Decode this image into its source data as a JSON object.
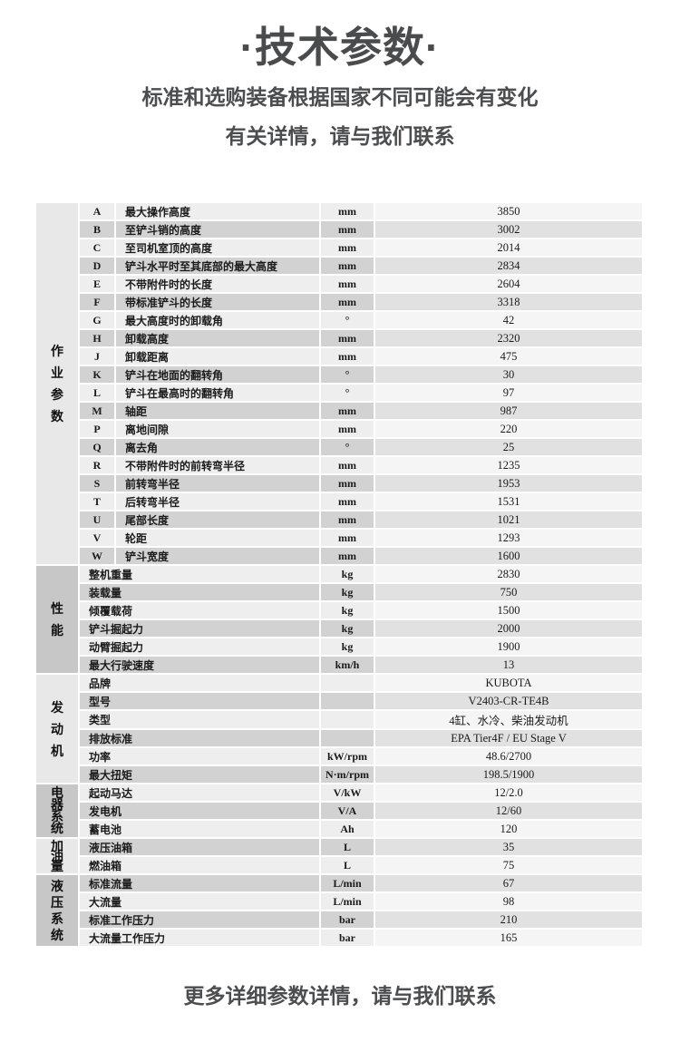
{
  "header": {
    "title": "·技术参数·",
    "subtitle_line1": "标准和选购装备根据国家不同可能会有变化",
    "subtitle_line2": "有关详情，请与我们联系"
  },
  "footer": {
    "text": "更多详细参数详情，请与我们联系"
  },
  "colors": {
    "heading_text": "#4a4b4d",
    "row_light": "#eeeeee",
    "row_dark": "#d2d2d2",
    "value_light": "#f5f5f5",
    "value_dark": "#e1e1e1",
    "group_light": "#e8e8e8",
    "group_dark": "#c7c7c7"
  },
  "table": {
    "sections": [
      {
        "group": "作业参数",
        "rows": [
          {
            "key": "A",
            "label": "最大操作高度",
            "unit": "mm",
            "value": "3850"
          },
          {
            "key": "B",
            "label": "至铲斗销的高度",
            "unit": "mm",
            "value": "3002"
          },
          {
            "key": "C",
            "label": "至司机室顶的高度",
            "unit": "mm",
            "value": "2014"
          },
          {
            "key": "D",
            "label": "铲斗水平时至其底部的最大高度",
            "unit": "mm",
            "value": "2834"
          },
          {
            "key": "E",
            "label": "不带附件时的长度",
            "unit": "mm",
            "value": "2604"
          },
          {
            "key": "F",
            "label": "带标准铲斗的长度",
            "unit": "mm",
            "value": "3318"
          },
          {
            "key": "G",
            "label": "最大高度时的卸载角",
            "unit": "°",
            "value": "42"
          },
          {
            "key": "H",
            "label": "卸载高度",
            "unit": "mm",
            "value": "2320"
          },
          {
            "key": "J",
            "label": "卸载距离",
            "unit": "mm",
            "value": "475"
          },
          {
            "key": "K",
            "label": "铲斗在地面的翻转角",
            "unit": "°",
            "value": "30"
          },
          {
            "key": "L",
            "label": "铲斗在最高时的翻转角",
            "unit": "°",
            "value": "97"
          },
          {
            "key": "M",
            "label": "轴距",
            "unit": "mm",
            "value": "987"
          },
          {
            "key": "P",
            "label": "离地间隙",
            "unit": "mm",
            "value": "220"
          },
          {
            "key": "Q",
            "label": "离去角",
            "unit": "°",
            "value": "25"
          },
          {
            "key": "R",
            "label": "不带附件时的前转弯半径",
            "unit": "mm",
            "value": "1235"
          },
          {
            "key": "S",
            "label": "前转弯半径",
            "unit": "mm",
            "value": "1953"
          },
          {
            "key": "T",
            "label": "后转弯半径",
            "unit": "mm",
            "value": "1531"
          },
          {
            "key": "U",
            "label": "尾部长度",
            "unit": "mm",
            "value": "1021"
          },
          {
            "key": "V",
            "label": "轮距",
            "unit": "mm",
            "value": "1293"
          },
          {
            "key": "W",
            "label": "铲斗宽度",
            "unit": "mm",
            "value": "1600"
          }
        ]
      },
      {
        "group": "性能",
        "rows": [
          {
            "label": "整机重量",
            "unit": "kg",
            "value": "2830"
          },
          {
            "label": "装载量",
            "unit": "kg",
            "value": "750"
          },
          {
            "label": "倾覆载荷",
            "unit": "kg",
            "value": "1500"
          },
          {
            "label": "铲斗掘起力",
            "unit": "kg",
            "value": "2000"
          },
          {
            "label": "动臂掘起力",
            "unit": "kg",
            "value": "1900"
          },
          {
            "label": "最大行驶速度",
            "unit": "km/h",
            "value": "13"
          }
        ]
      },
      {
        "group": "发动机",
        "rows": [
          {
            "label": "品牌",
            "unit": "",
            "value": "KUBOTA"
          },
          {
            "label": "型号",
            "unit": "",
            "value": "V2403-CR-TE4B"
          },
          {
            "label": "类型",
            "unit": "",
            "value": "4缸、水冷、柴油发动机"
          },
          {
            "label": "排放标准",
            "unit": "",
            "value": "EPA Tier4F / EU Stage V"
          },
          {
            "label": "功率",
            "unit": "kW/rpm",
            "value": "48.6/2700"
          },
          {
            "label": "最大扭矩",
            "unit": "N·m/rpm",
            "value": "198.5/1900"
          }
        ]
      },
      {
        "group": "电器系统",
        "rows": [
          {
            "label": "起动马达",
            "unit": "V/kW",
            "value": "12/2.0"
          },
          {
            "label": "发电机",
            "unit": "V/A",
            "value": "12/60"
          },
          {
            "label": "蓄电池",
            "unit": "Ah",
            "value": "120"
          }
        ]
      },
      {
        "group": "加油量",
        "rows": [
          {
            "label": "液压油箱",
            "unit": "L",
            "value": "35"
          },
          {
            "label": "燃油箱",
            "unit": "L",
            "value": "75"
          }
        ]
      },
      {
        "group": "液压系统",
        "rows": [
          {
            "label": "标准流量",
            "unit": "L/min",
            "value": "67"
          },
          {
            "label": "大流量",
            "unit": "L/min",
            "value": "98"
          },
          {
            "label": "标准工作压力",
            "unit": "bar",
            "value": "210"
          },
          {
            "label": "大流量工作压力",
            "unit": "bar",
            "value": "165"
          }
        ]
      }
    ]
  }
}
